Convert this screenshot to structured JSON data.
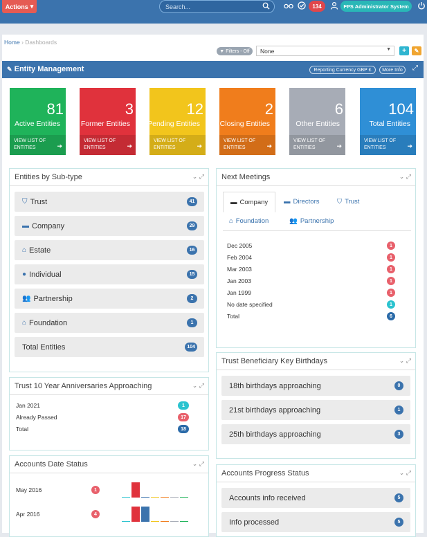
{
  "topbar": {
    "actions_label": "Actions",
    "search_placeholder": "Search...",
    "notif_count": "134",
    "user_label": "FPS Administrator System"
  },
  "breadcrumb": {
    "home": "Home",
    "sep": "›",
    "current": "Dashboards"
  },
  "filters": {
    "label": "Filters - Off",
    "select_value": "None"
  },
  "entity_mgmt": {
    "title": "Entity Management",
    "currency_label": "Reporting Currency GBP £",
    "more_info": "More Info"
  },
  "tiles": [
    {
      "num": "81",
      "label": "Active Entities",
      "foot": "VIEW LIST OF ENTITIES",
      "color": "#1fb35a"
    },
    {
      "num": "3",
      "label": "Former Entities",
      "foot": "VIEW LIST OF ENTITIES",
      "color": "#e0323c"
    },
    {
      "num": "12",
      "label": "Pending Entities",
      "foot": "VIEW LIST OF ENTITIES",
      "color": "#f2c51c"
    },
    {
      "num": "2",
      "label": "Closing Entities",
      "foot": "VIEW LIST OF ENTITIES",
      "color": "#f07d1c"
    },
    {
      "num": "6",
      "label": "Other Entities",
      "foot": "VIEW LIST OF ENTITIES",
      "color": "#a7acb6"
    },
    {
      "num": "104",
      "label": "Total Entities",
      "foot": "VIEW LIST OF ENTITIES",
      "color": "#2f8fd6"
    }
  ],
  "subtype": {
    "title": "Entities by Sub-type",
    "rows": [
      {
        "label": "Trust",
        "count": "41",
        "icon": "shield-icon"
      },
      {
        "label": "Company",
        "count": "29",
        "icon": "briefcase-icon"
      },
      {
        "label": "Estate",
        "count": "16",
        "icon": "home-icon"
      },
      {
        "label": "Individual",
        "count": "15",
        "icon": "user-icon"
      },
      {
        "label": "Partnership",
        "count": "2",
        "icon": "users-icon"
      },
      {
        "label": "Foundation",
        "count": "1",
        "icon": "bank-icon"
      },
      {
        "label": "Total Entities",
        "count": "104",
        "icon": ""
      }
    ]
  },
  "meetings": {
    "title": "Next Meetings",
    "tabs": [
      "Company",
      "Directors",
      "Trust",
      "Foundation",
      "Partnership"
    ],
    "items": [
      {
        "label": "Dec 2005",
        "count": "1",
        "color": "#e8606b"
      },
      {
        "label": "Feb 2004",
        "count": "1",
        "color": "#e8606b"
      },
      {
        "label": "Mar 2003",
        "count": "1",
        "color": "#e8606b"
      },
      {
        "label": "Jan 2003",
        "count": "1",
        "color": "#e8606b"
      },
      {
        "label": "Jan 1999",
        "count": "1",
        "color": "#e8606b"
      },
      {
        "label": "No date specified",
        "count": "1",
        "color": "#2bc3cf"
      },
      {
        "label": "Total",
        "count": "6",
        "color": "#2a6aa8"
      }
    ]
  },
  "anniv": {
    "title": "Trust 10 Year Anniversaries Approaching",
    "items": [
      {
        "label": "Jan 2021",
        "count": "1",
        "color": "#2bc3cf"
      },
      {
        "label": "Already Passed",
        "count": "17",
        "color": "#e8606b"
      },
      {
        "label": "Total",
        "count": "18",
        "color": "#2a6aa8"
      }
    ]
  },
  "birthdays": {
    "title": "Trust Beneficiary Key Birthdays",
    "rows": [
      {
        "label": "18th birthdays approaching",
        "count": "0"
      },
      {
        "label": "21st birthdays approaching",
        "count": "1"
      },
      {
        "label": "25th birthdays approaching",
        "count": "3"
      }
    ]
  },
  "accounts_date": {
    "title": "Accounts Date Status",
    "rows": [
      {
        "label": "May 2016",
        "count": "1",
        "bars": [
          0,
          1,
          0,
          0,
          0,
          0,
          0
        ]
      },
      {
        "label": "Apr 2016",
        "count": "4",
        "bars": [
          0,
          1,
          1,
          0,
          0,
          0,
          0
        ]
      }
    ]
  },
  "accounts_progress": {
    "title": "Accounts Progress Status",
    "rows": [
      {
        "label": "Accounts info received",
        "count": "5"
      },
      {
        "label": "Info processed",
        "count": "5"
      }
    ]
  }
}
